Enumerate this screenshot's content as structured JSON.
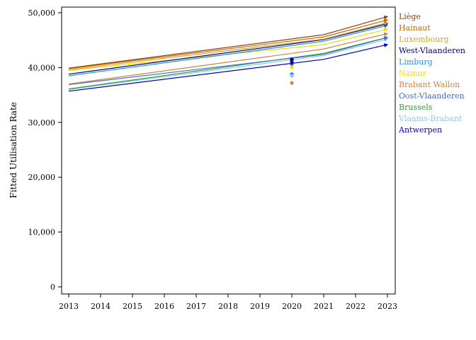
{
  "chart_data": {
    "type": "line",
    "title": "",
    "xlabel": "",
    "ylabel": "Fitted Utilisation Rate",
    "x": [
      2013,
      2014,
      2015,
      2016,
      2017,
      2018,
      2019,
      2020,
      2021,
      2022,
      2023
    ],
    "x_ticks": [
      "2013",
      "2014",
      "2015",
      "2016",
      "2017",
      "2018",
      "2019",
      "2020",
      "2021",
      "2022",
      "2023"
    ],
    "y_ticks": [
      "0",
      "10,000",
      "20,000",
      "30,000",
      "40,000",
      "50,000"
    ],
    "ylim": [
      0,
      50000
    ],
    "xlim": [
      2013,
      2023
    ],
    "legend_position": "right",
    "series": [
      {
        "name": "Liège",
        "color": "#8b4513",
        "line_x": [
          2013,
          2021,
          2023
        ],
        "line_y": [
          39900,
          46000,
          49300
        ],
        "point_2020": 41300
      },
      {
        "name": "Hainaut",
        "color": "#cd6600",
        "line_x": [
          2013,
          2021,
          2023
        ],
        "line_y": [
          39800,
          45600,
          48700
        ],
        "point_2020": 41100
      },
      {
        "name": "Luxembourg",
        "color": "#daa520",
        "line_x": [
          2013,
          2021,
          2023
        ],
        "line_y": [
          39600,
          45200,
          48200
        ],
        "point_2020": 40700
      },
      {
        "name": "West-Vlaanderen",
        "color": "#000080",
        "line_x": [
          2013,
          2021,
          2023
        ],
        "line_y": [
          38800,
          45100,
          48000
        ],
        "point_2020": 41500
      },
      {
        "name": "Limburg",
        "color": "#1e90ff",
        "line_x": [
          2013,
          2021,
          2023
        ],
        "line_y": [
          38500,
          44800,
          47700
        ],
        "point_2020": 40600
      },
      {
        "name": "Namur",
        "color": "#ffd700",
        "line_x": [
          2013,
          2021,
          2023
        ],
        "line_y": [
          39500,
          44200,
          47000
        ],
        "point_2020": 40100
      },
      {
        "name": "Brabant Wallon",
        "color": "#cd853f",
        "line_x": [
          2013,
          2021,
          2023
        ],
        "line_y": [
          37000,
          43400,
          46200
        ],
        "point_2020": 37200
      },
      {
        "name": "Oost-Vlaanderen",
        "color": "#4169e1",
        "line_x": [
          2013,
          2021,
          2023
        ],
        "line_y": [
          36900,
          42400,
          45500
        ],
        "point_2020": 38800
      },
      {
        "name": "Brussels",
        "color": "#2ca02c",
        "line_x": [
          2013,
          2021,
          2023
        ],
        "line_y": [
          36100,
          42600,
          45500
        ],
        "point_2020": 40700
      },
      {
        "name": "Vlaams-Brabant",
        "color": "#87ceeb",
        "line_x": [
          2013,
          2021,
          2023
        ],
        "line_y": [
          36000,
          42200,
          45200
        ],
        "point_2020": 38500
      },
      {
        "name": "Antwerpen",
        "color": "#0000cd",
        "line_x": [
          2013,
          2021,
          2023
        ],
        "line_y": [
          35700,
          41500,
          44200
        ],
        "point_2020": 40900
      }
    ]
  }
}
